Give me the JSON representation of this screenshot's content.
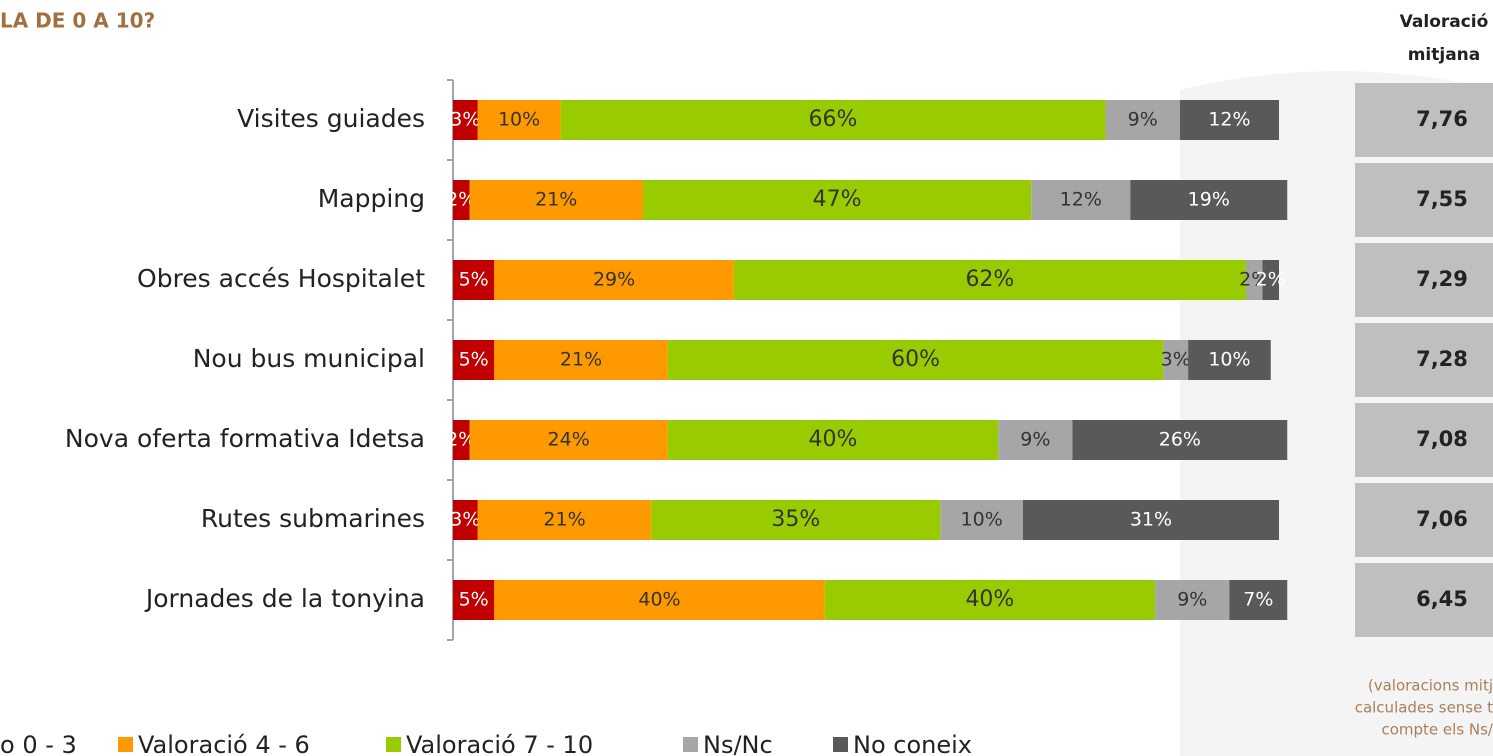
{
  "chart_data": {
    "type": "stacked-bar-horizontal",
    "title": "LA DE 0 A 10?",
    "categories": [
      "Visites guiades",
      "Mapping",
      "Obres accés Hospitalet",
      "Nou bus municipal",
      "Nova oferta formativa Idetsa",
      "Rutes submarines",
      "Jornades de la tonyina"
    ],
    "xlim": [
      0,
      100
    ],
    "series": [
      {
        "name": "o 0 - 3",
        "color": "#c00000",
        "label_color": "#ffffff",
        "values": [
          3,
          2,
          5,
          5,
          2,
          3,
          5
        ],
        "value_labels": [
          "3%",
          "2%",
          "5%",
          "5%",
          "2%",
          "3%",
          "5%"
        ]
      },
      {
        "name": "Valoració 4 - 6",
        "color": "#ff9900",
        "label_color": "#333333",
        "values": [
          10,
          21,
          29,
          21,
          24,
          21,
          40
        ],
        "value_labels": [
          "10%",
          "21%",
          "29%",
          "21%",
          "24%",
          "21%",
          "40%"
        ]
      },
      {
        "name": "Valoració  7 - 10",
        "color": "#99cc00",
        "label_color": "#333333",
        "values": [
          66,
          47,
          62,
          60,
          40,
          35,
          40
        ],
        "value_labels": [
          "66%",
          "47%",
          "62%",
          "60%",
          "40%",
          "35%",
          "40%"
        ]
      },
      {
        "name": "Ns/Nc",
        "color": "#a6a6a6",
        "label_color": "#333333",
        "values": [
          9,
          12,
          2,
          3,
          9,
          10,
          9
        ],
        "value_labels": [
          "9%",
          "12%",
          "2%",
          "3%",
          "9%",
          "10%",
          "9%"
        ]
      },
      {
        "name": "No coneix",
        "color": "#595959",
        "label_color": "#ffffff",
        "values": [
          12,
          19,
          2,
          10,
          26,
          31,
          7
        ],
        "value_labels": [
          "12%",
          "19%",
          "2%",
          "10%",
          "26%",
          "31%",
          "7%"
        ]
      }
    ],
    "mean_header": [
      "Valoració",
      "mitjana"
    ],
    "means": [
      "7,76",
      "7,55",
      "7,29",
      "7,28",
      "7,08",
      "7,06",
      "6,45"
    ],
    "footnote": [
      "(valoracions mitj",
      "calculades sense t",
      "compte els Ns/"
    ]
  }
}
